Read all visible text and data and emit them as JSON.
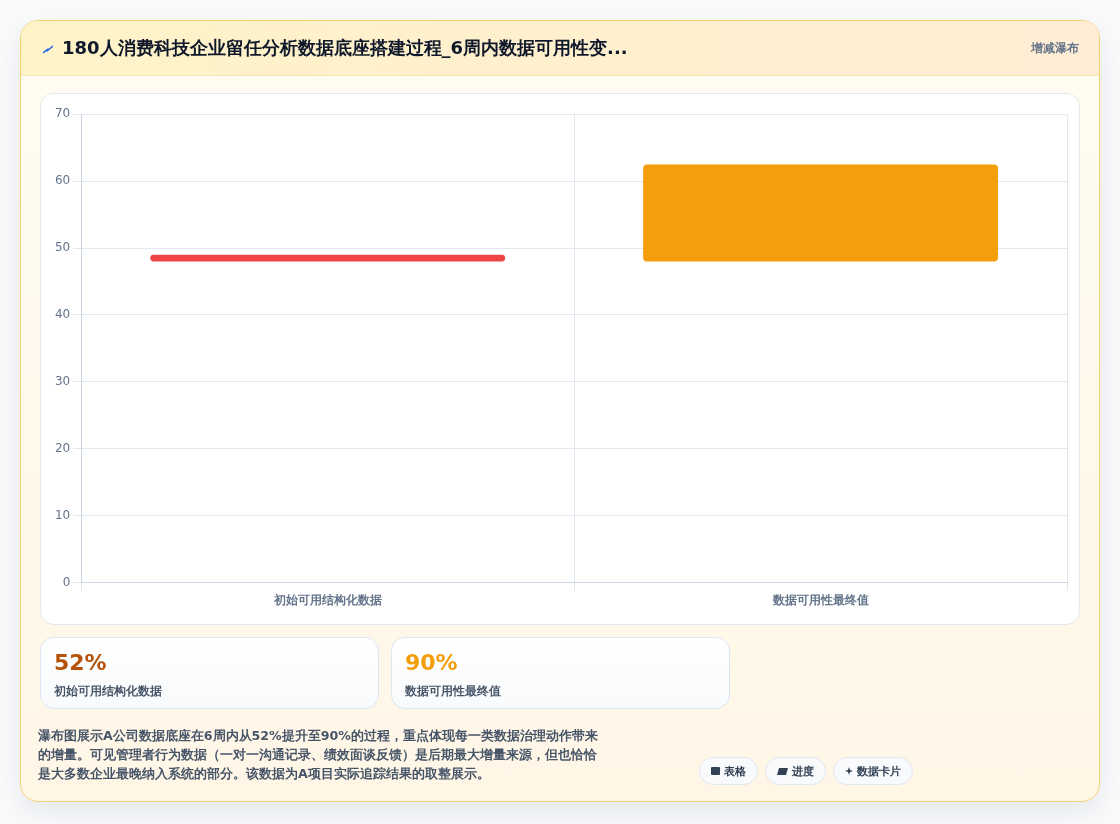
{
  "chart_data": [
    {
      "type": "bar",
      "title": "180人消费科技企业留任分析数据底座搭建过程_6周内数据可用性变...",
      "subtitle": "增减瀑布",
      "categories": [
        "初始可用结构化数据",
        "数据可用性最终值"
      ],
      "values": [
        1,
        14.5
      ],
      "base": [
        48,
        48
      ],
      "colors": [
        "#ef4444",
        "#f59e0b"
      ],
      "ylim": [
        0,
        70
      ],
      "yticks": [
        0,
        10,
        20,
        30,
        40,
        50,
        60,
        70
      ],
      "grid": true,
      "annotations": [
        "瀑布图展示A公司数据底座在6周内从52%提升至90%的过程，重点体现每一类数据治理动作带来的增量。可见管理者行为数据（一对一沟通记录、绩效面谈反馈）是后期最大增量来源，但也恰恰是大多数企业最晚纳入系统的部分。该数据为A项目实际追踪结果的取整展示。",
        "表格",
        "进度",
        "数据卡片"
      ]
    },
    {
      "type": "other",
      "annotations": [
        "52%",
        "初始可用结构化数据",
        "90%",
        "数据可用性最终值"
      ],
      "colors": [
        "#b45309",
        "#f59e0b"
      ]
    }
  ]
}
